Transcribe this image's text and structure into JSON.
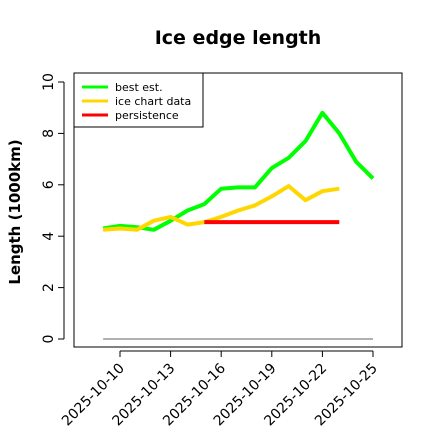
{
  "chart_data": {
    "type": "line",
    "title": "Ice edge length",
    "xlabel": "",
    "ylabel": "Length (1000km)",
    "ylim": [
      0,
      10
    ],
    "y_ticks": [
      "0",
      "2",
      "4",
      "6",
      "8",
      "10"
    ],
    "x_ticks": [
      "2025-10-10",
      "2025-10-13",
      "2025-10-16",
      "2025-10-19",
      "2025-10-22",
      "2025-10-25"
    ],
    "grid": false,
    "legend_position": "top-left",
    "x": [
      "2025-10-09",
      "2025-10-10",
      "2025-10-11",
      "2025-10-12",
      "2025-10-13",
      "2025-10-14",
      "2025-10-15",
      "2025-10-16",
      "2025-10-17",
      "2025-10-18",
      "2025-10-19",
      "2025-10-20",
      "2025-10-21",
      "2025-10-22",
      "2025-10-23",
      "2025-10-24",
      "2025-10-25"
    ],
    "series": [
      {
        "name": "best est.",
        "color": "#00ff00",
        "values": [
          4.3,
          4.4,
          4.35,
          4.25,
          4.6,
          5.0,
          5.25,
          5.85,
          5.9,
          5.9,
          6.65,
          7.05,
          7.7,
          8.8,
          8.0,
          6.9,
          6.25
        ]
      },
      {
        "name": "ice chart data",
        "color": "#ffd700",
        "values": [
          4.25,
          4.3,
          4.25,
          4.6,
          4.75,
          4.45,
          4.55,
          4.75,
          5.0,
          5.2,
          5.55,
          5.95,
          5.4,
          5.75,
          5.85,
          null,
          null
        ]
      },
      {
        "name": "persistence",
        "color": "#ff0000",
        "values": [
          null,
          null,
          null,
          null,
          null,
          null,
          4.55,
          4.55,
          4.55,
          4.55,
          4.55,
          4.55,
          4.55,
          4.55,
          4.55,
          null,
          null
        ]
      }
    ],
    "reference_line": {
      "y": 0,
      "color": "#808080"
    }
  }
}
